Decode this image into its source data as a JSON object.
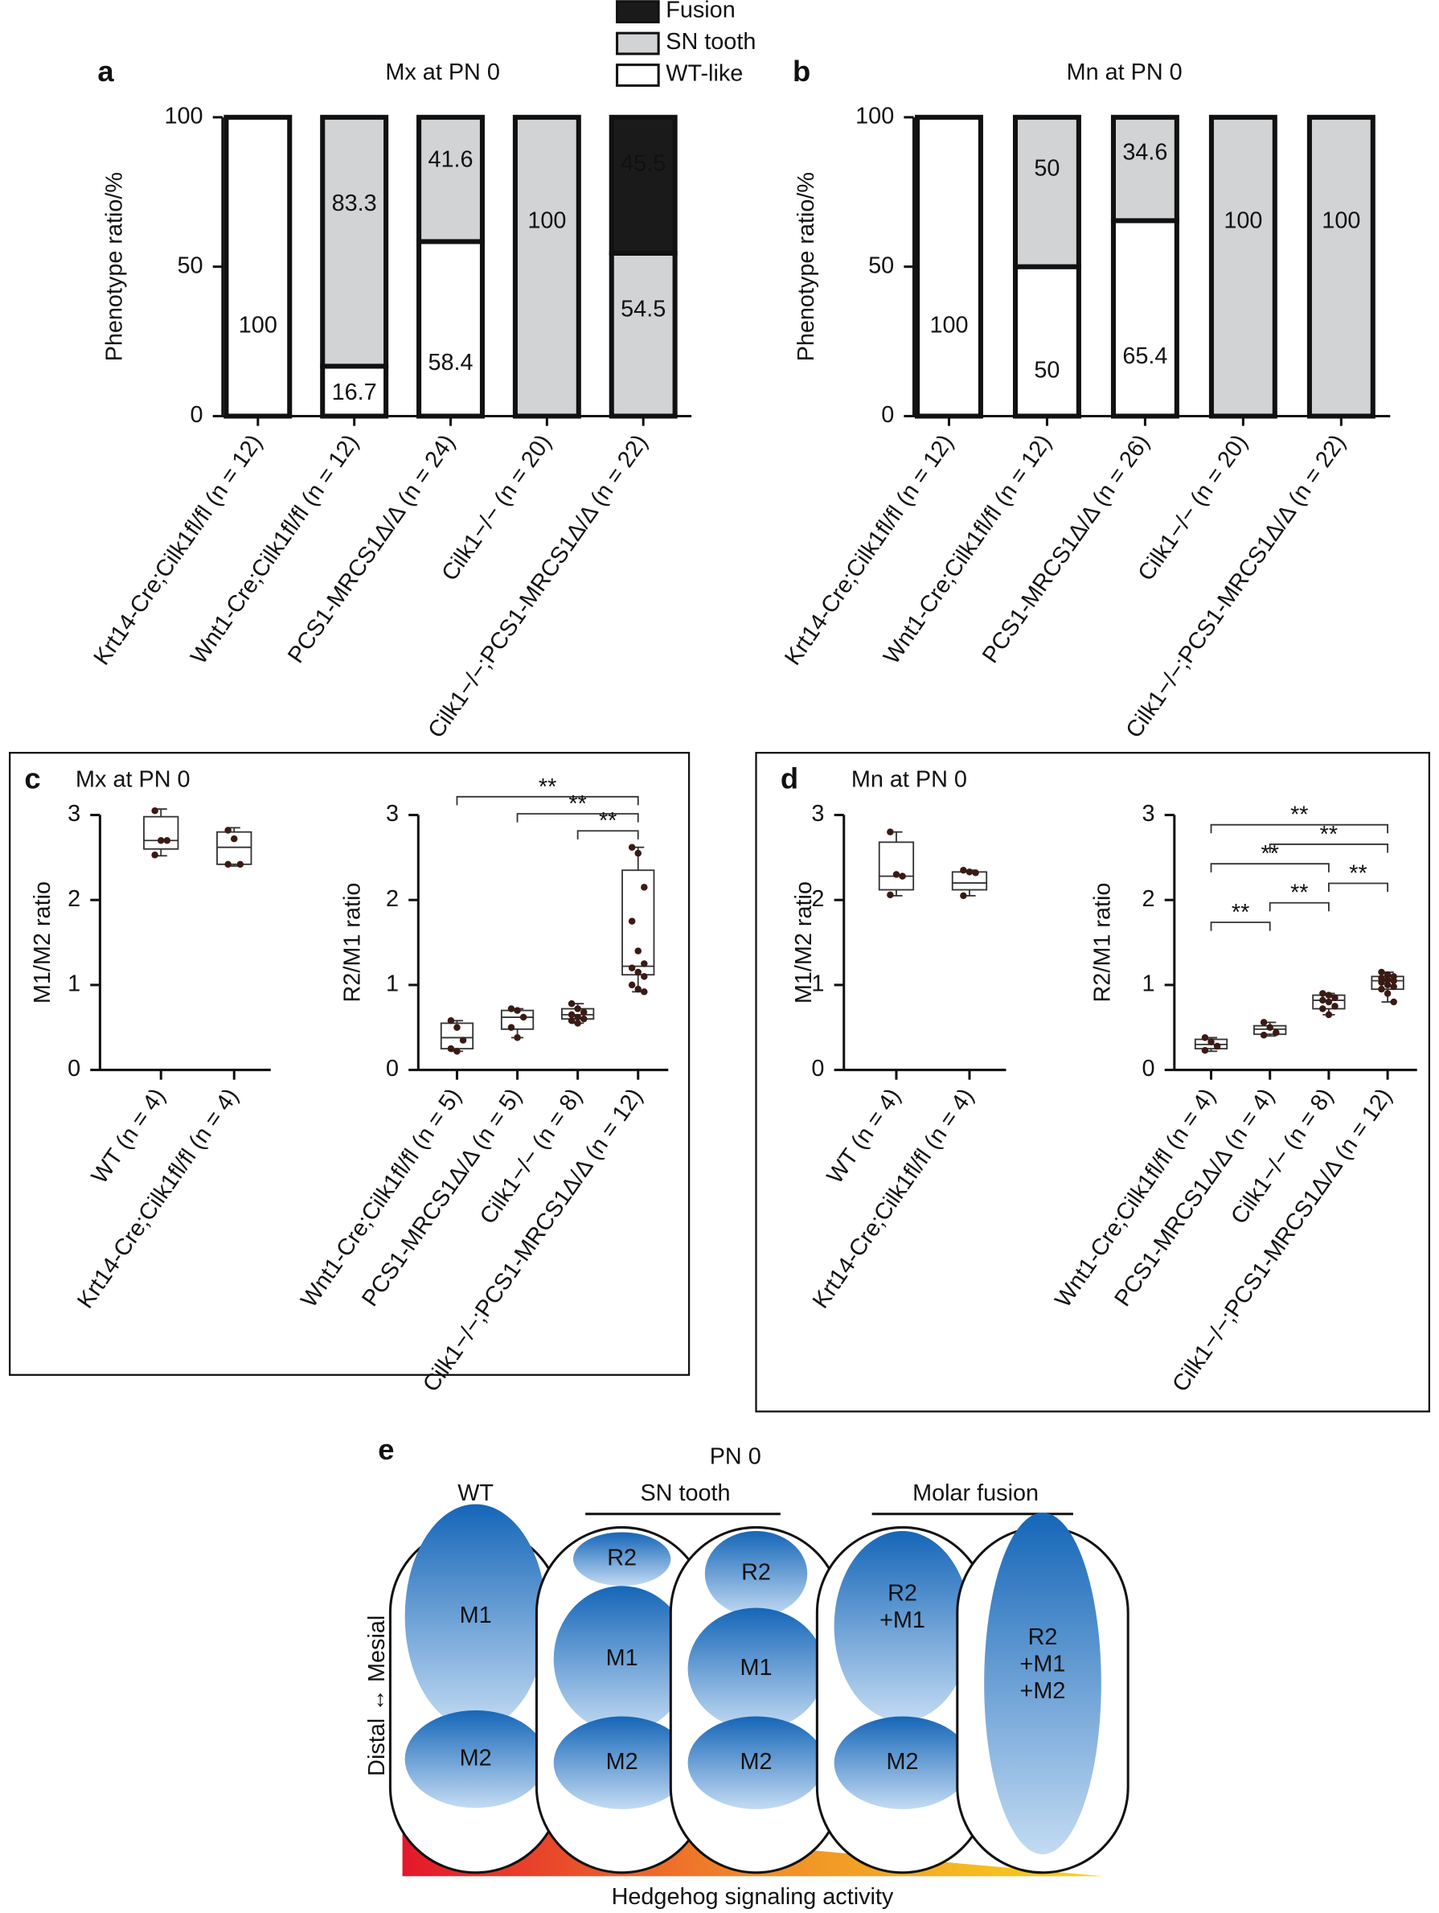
{
  "chart_data": [
    {
      "type": "stacked_bar",
      "label": "a",
      "title": "Mx at PN 0",
      "ylabel": "Phenotype ratio/%",
      "categories": [
        "Krt14-Cre;Cilk1fl/fl (n = 12)",
        "Wnt1-Cre;Cilk1fl/fl (n = 12)",
        "PCS1-MRCS1Δ/Δ (n = 24)",
        "Cilk1−/− (n = 20)",
        "Cilk1−/−;PCS1-MRCS1Δ/Δ (n = 22)"
      ],
      "series": [
        {
          "name": "WT-like",
          "color": "#ffffff",
          "values": [
            100,
            16.7,
            58.4,
            0,
            0
          ]
        },
        {
          "name": "SN tooth",
          "color": "#d1d3d4",
          "values": [
            0,
            83.3,
            41.6,
            100,
            54.5
          ]
        },
        {
          "name": "Fusion",
          "color": "#1a1a1a",
          "values": [
            0,
            0,
            0,
            0,
            45.5
          ]
        }
      ],
      "ylim": [
        0,
        100
      ],
      "yticks": [
        0,
        50,
        100
      ],
      "legend": "top"
    },
    {
      "type": "stacked_bar",
      "label": "b",
      "title": "Mn at PN 0",
      "ylabel": "Phenotype ratio/%",
      "categories": [
        "Krt14-Cre;Cilk1fl/fl (n = 12)",
        "Wnt1-Cre;Cilk1fl/fl (n = 12)",
        "PCS1-MRCS1Δ/Δ (n = 26)",
        "Cilk1−/− (n = 20)",
        "Cilk1−/−;PCS1-MRCS1Δ/Δ (n = 22)"
      ],
      "series": [
        {
          "name": "WT-like",
          "color": "#ffffff",
          "values": [
            100,
            50,
            65.4,
            0,
            0
          ]
        },
        {
          "name": "SN tooth",
          "color": "#d1d3d4",
          "values": [
            0,
            50,
            34.6,
            100,
            100
          ]
        }
      ],
      "ylim": [
        0,
        100
      ],
      "yticks": [
        0,
        50,
        100
      ]
    },
    {
      "type": "box",
      "label": "c",
      "title": "Mx at PN 0",
      "ylabel": "M1/M2 ratio",
      "categories": [
        "WT (n = 4)",
        "Krt14-Cre;Cilk1fl/fl (n = 4)"
      ],
      "boxes": [
        {
          "min": 2.52,
          "q1": 2.6,
          "median": 2.7,
          "q3": 2.98,
          "max": 3.07,
          "points": [
            3.05,
            2.7,
            2.7,
            2.53
          ]
        },
        {
          "min": 2.4,
          "q1": 2.42,
          "median": 2.62,
          "q3": 2.8,
          "max": 2.85,
          "points": [
            2.82,
            2.72,
            2.42,
            2.42
          ]
        }
      ],
      "ylim": [
        0,
        3
      ],
      "yticks": [
        0,
        1,
        2,
        3
      ]
    },
    {
      "type": "box",
      "ylabel": "R2/M1 ratio",
      "categories": [
        "Wnt1-Cre;Cilk1fl/fl (n = 5)",
        "PCS1-MRCS1Δ/Δ (n = 5)",
        "Cilk1−/− (n = 8)",
        "Cilk1−/−;PCS1-MRCS1Δ/Δ (n = 12)"
      ],
      "boxes": [
        {
          "min": 0.22,
          "q1": 0.25,
          "median": 0.38,
          "q3": 0.55,
          "max": 0.58,
          "points": [
            0.58,
            0.5,
            0.35,
            0.25,
            0.22
          ]
        },
        {
          "min": 0.38,
          "q1": 0.48,
          "median": 0.62,
          "q3": 0.7,
          "max": 0.72,
          "points": [
            0.72,
            0.7,
            0.62,
            0.5,
            0.38
          ]
        },
        {
          "min": 0.55,
          "q1": 0.6,
          "median": 0.65,
          "q3": 0.72,
          "max": 0.78,
          "points": [
            0.78,
            0.72,
            0.68,
            0.65,
            0.62,
            0.6,
            0.58,
            0.55
          ]
        },
        {
          "min": 0.92,
          "q1": 1.12,
          "median": 1.22,
          "q3": 2.35,
          "max": 2.62,
          "points": [
            2.62,
            2.55,
            2.15,
            1.75,
            1.4,
            1.25,
            1.2,
            1.15,
            1.1,
            1.0,
            0.95,
            0.92
          ]
        }
      ],
      "ylim": [
        0,
        3
      ],
      "yticks": [
        0,
        1,
        2,
        3
      ],
      "annotations": [
        {
          "label": "**",
          "from": 0,
          "to": 3
        },
        {
          "label": "**",
          "from": 1,
          "to": 3
        },
        {
          "label": "**",
          "from": 2,
          "to": 3
        }
      ]
    },
    {
      "type": "box",
      "label": "d",
      "title": "Mn at PN 0",
      "ylabel": "M1/M2 ratio",
      "categories": [
        "WT (n = 4)",
        "Krt14-Cre;Cilk1fl/fl (n = 4)"
      ],
      "boxes": [
        {
          "min": 2.05,
          "q1": 2.12,
          "median": 2.28,
          "q3": 2.68,
          "max": 2.8,
          "points": [
            2.8,
            2.3,
            2.28,
            2.06
          ]
        },
        {
          "min": 2.05,
          "q1": 2.12,
          "median": 2.2,
          "q3": 2.33,
          "max": 2.35,
          "points": [
            2.35,
            2.33,
            2.32,
            2.05
          ]
        }
      ],
      "ylim": [
        0,
        3
      ],
      "yticks": [
        0,
        1,
        2,
        3
      ]
    },
    {
      "type": "box",
      "ylabel": "R2/M1 ratio",
      "categories": [
        "Wnt1-Cre;Cilk1fl/fl (n = 4)",
        "PCS1-MRCS1Δ/Δ (n = 4)",
        "Cilk1−/− (n = 8)",
        "Cilk1−/−;PCS1-MRCS1Δ/Δ (n = 12)"
      ],
      "boxes": [
        {
          "min": 0.22,
          "q1": 0.25,
          "median": 0.3,
          "q3": 0.36,
          "max": 0.38,
          "points": [
            0.38,
            0.33,
            0.28,
            0.23
          ]
        },
        {
          "min": 0.4,
          "q1": 0.42,
          "median": 0.48,
          "q3": 0.52,
          "max": 0.56,
          "points": [
            0.56,
            0.5,
            0.44,
            0.41
          ]
        },
        {
          "min": 0.65,
          "q1": 0.72,
          "median": 0.82,
          "q3": 0.88,
          "max": 0.9,
          "points": [
            0.9,
            0.88,
            0.85,
            0.82,
            0.8,
            0.75,
            0.72,
            0.65
          ]
        },
        {
          "min": 0.8,
          "q1": 0.95,
          "median": 1.05,
          "q3": 1.1,
          "max": 1.15,
          "points": [
            1.15,
            1.12,
            1.1,
            1.08,
            1.06,
            1.05,
            1.03,
            1.0,
            0.98,
            0.95,
            0.9,
            0.8
          ]
        }
      ],
      "ylim": [
        0,
        3
      ],
      "yticks": [
        0,
        1,
        2,
        3
      ],
      "annotations": [
        {
          "label": "**",
          "from": 0,
          "to": 3
        },
        {
          "label": "**",
          "from": 1,
          "to": 3
        },
        {
          "label": "**",
          "from": 0,
          "to": 2
        },
        {
          "label": "**",
          "from": 2,
          "to": 3
        },
        {
          "label": "**",
          "from": 1,
          "to": 2
        },
        {
          "label": "**",
          "from": 0,
          "to": 1
        }
      ]
    }
  ],
  "diagram": {
    "label": "e",
    "title": "PN 0",
    "wt": "WT",
    "groups": [
      "SN tooth",
      "Molar fusion"
    ],
    "axis_label": "Distal ↔ Mesial",
    "gradient_label": "Hedgehog signaling activity",
    "capsules": [
      {
        "parts": [
          [
            "M1"
          ],
          [
            "M2"
          ]
        ]
      },
      {
        "parts": [
          [
            "R2"
          ],
          [
            "M1"
          ],
          [
            "M2"
          ]
        ]
      },
      {
        "parts": [
          [
            "R2"
          ],
          [
            "M1"
          ],
          [
            "M2"
          ]
        ]
      },
      {
        "parts": [
          [
            "R2",
            "+M1"
          ],
          [
            "M2"
          ]
        ]
      },
      {
        "parts": [
          [
            "R2",
            "+M1",
            "+M2"
          ]
        ]
      }
    ]
  }
}
